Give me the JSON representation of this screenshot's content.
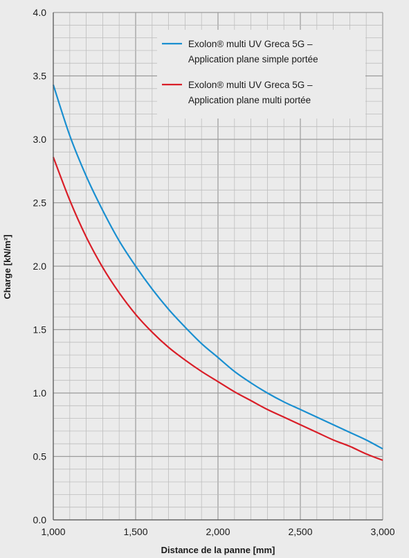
{
  "chart_data": {
    "type": "line",
    "xlabel": "Distance de la panne [mm]",
    "ylabel": "Charge [kN/m²]",
    "xlim": [
      1000,
      3000
    ],
    "ylim": [
      0,
      4
    ],
    "x_ticks": [
      {
        "value": 1000,
        "label": "1,000"
      },
      {
        "value": 1500,
        "label": "1,500"
      },
      {
        "value": 2000,
        "label": "2,000"
      },
      {
        "value": 2500,
        "label": "2,500"
      },
      {
        "value": 3000,
        "label": "3,000"
      }
    ],
    "y_ticks": [
      {
        "value": 0,
        "label": "0.0"
      },
      {
        "value": 0.5,
        "label": "0.5"
      },
      {
        "value": 1,
        "label": "1.0"
      },
      {
        "value": 1.5,
        "label": "1.5"
      },
      {
        "value": 2,
        "label": "2.0"
      },
      {
        "value": 2.5,
        "label": "2.5"
      },
      {
        "value": 3,
        "label": "3.0"
      },
      {
        "value": 3.5,
        "label": "3.5"
      },
      {
        "value": 4,
        "label": "4.0"
      }
    ],
    "grid": true,
    "legend_position": "top-right",
    "series": [
      {
        "name_lines": [
          "Exolon® multi UV Greca 5G –",
          "Application plane simple portée"
        ],
        "color": "#1a8fd0",
        "x": [
          1000,
          1100,
          1200,
          1300,
          1400,
          1500,
          1600,
          1700,
          1800,
          1900,
          2000,
          2100,
          2200,
          2300,
          2400,
          2500,
          2600,
          2700,
          2800,
          2900,
          3000
        ],
        "y": [
          3.43,
          3.03,
          2.71,
          2.44,
          2.2,
          2.0,
          1.82,
          1.66,
          1.52,
          1.39,
          1.28,
          1.17,
          1.08,
          1.0,
          0.93,
          0.87,
          0.81,
          0.75,
          0.69,
          0.63,
          0.56
        ]
      },
      {
        "name_lines": [
          "Exolon® multi UV Greca 5G –",
          "Application plane multi portée"
        ],
        "color": "#d91e28",
        "x": [
          1000,
          1100,
          1200,
          1300,
          1400,
          1500,
          1600,
          1700,
          1800,
          1900,
          2000,
          2100,
          2200,
          2300,
          2400,
          2500,
          2600,
          2700,
          2800,
          2900,
          3000
        ],
        "y": [
          2.86,
          2.52,
          2.23,
          1.99,
          1.79,
          1.62,
          1.48,
          1.36,
          1.26,
          1.17,
          1.09,
          1.01,
          0.94,
          0.87,
          0.81,
          0.75,
          0.69,
          0.63,
          0.58,
          0.52,
          0.47
        ]
      }
    ]
  }
}
